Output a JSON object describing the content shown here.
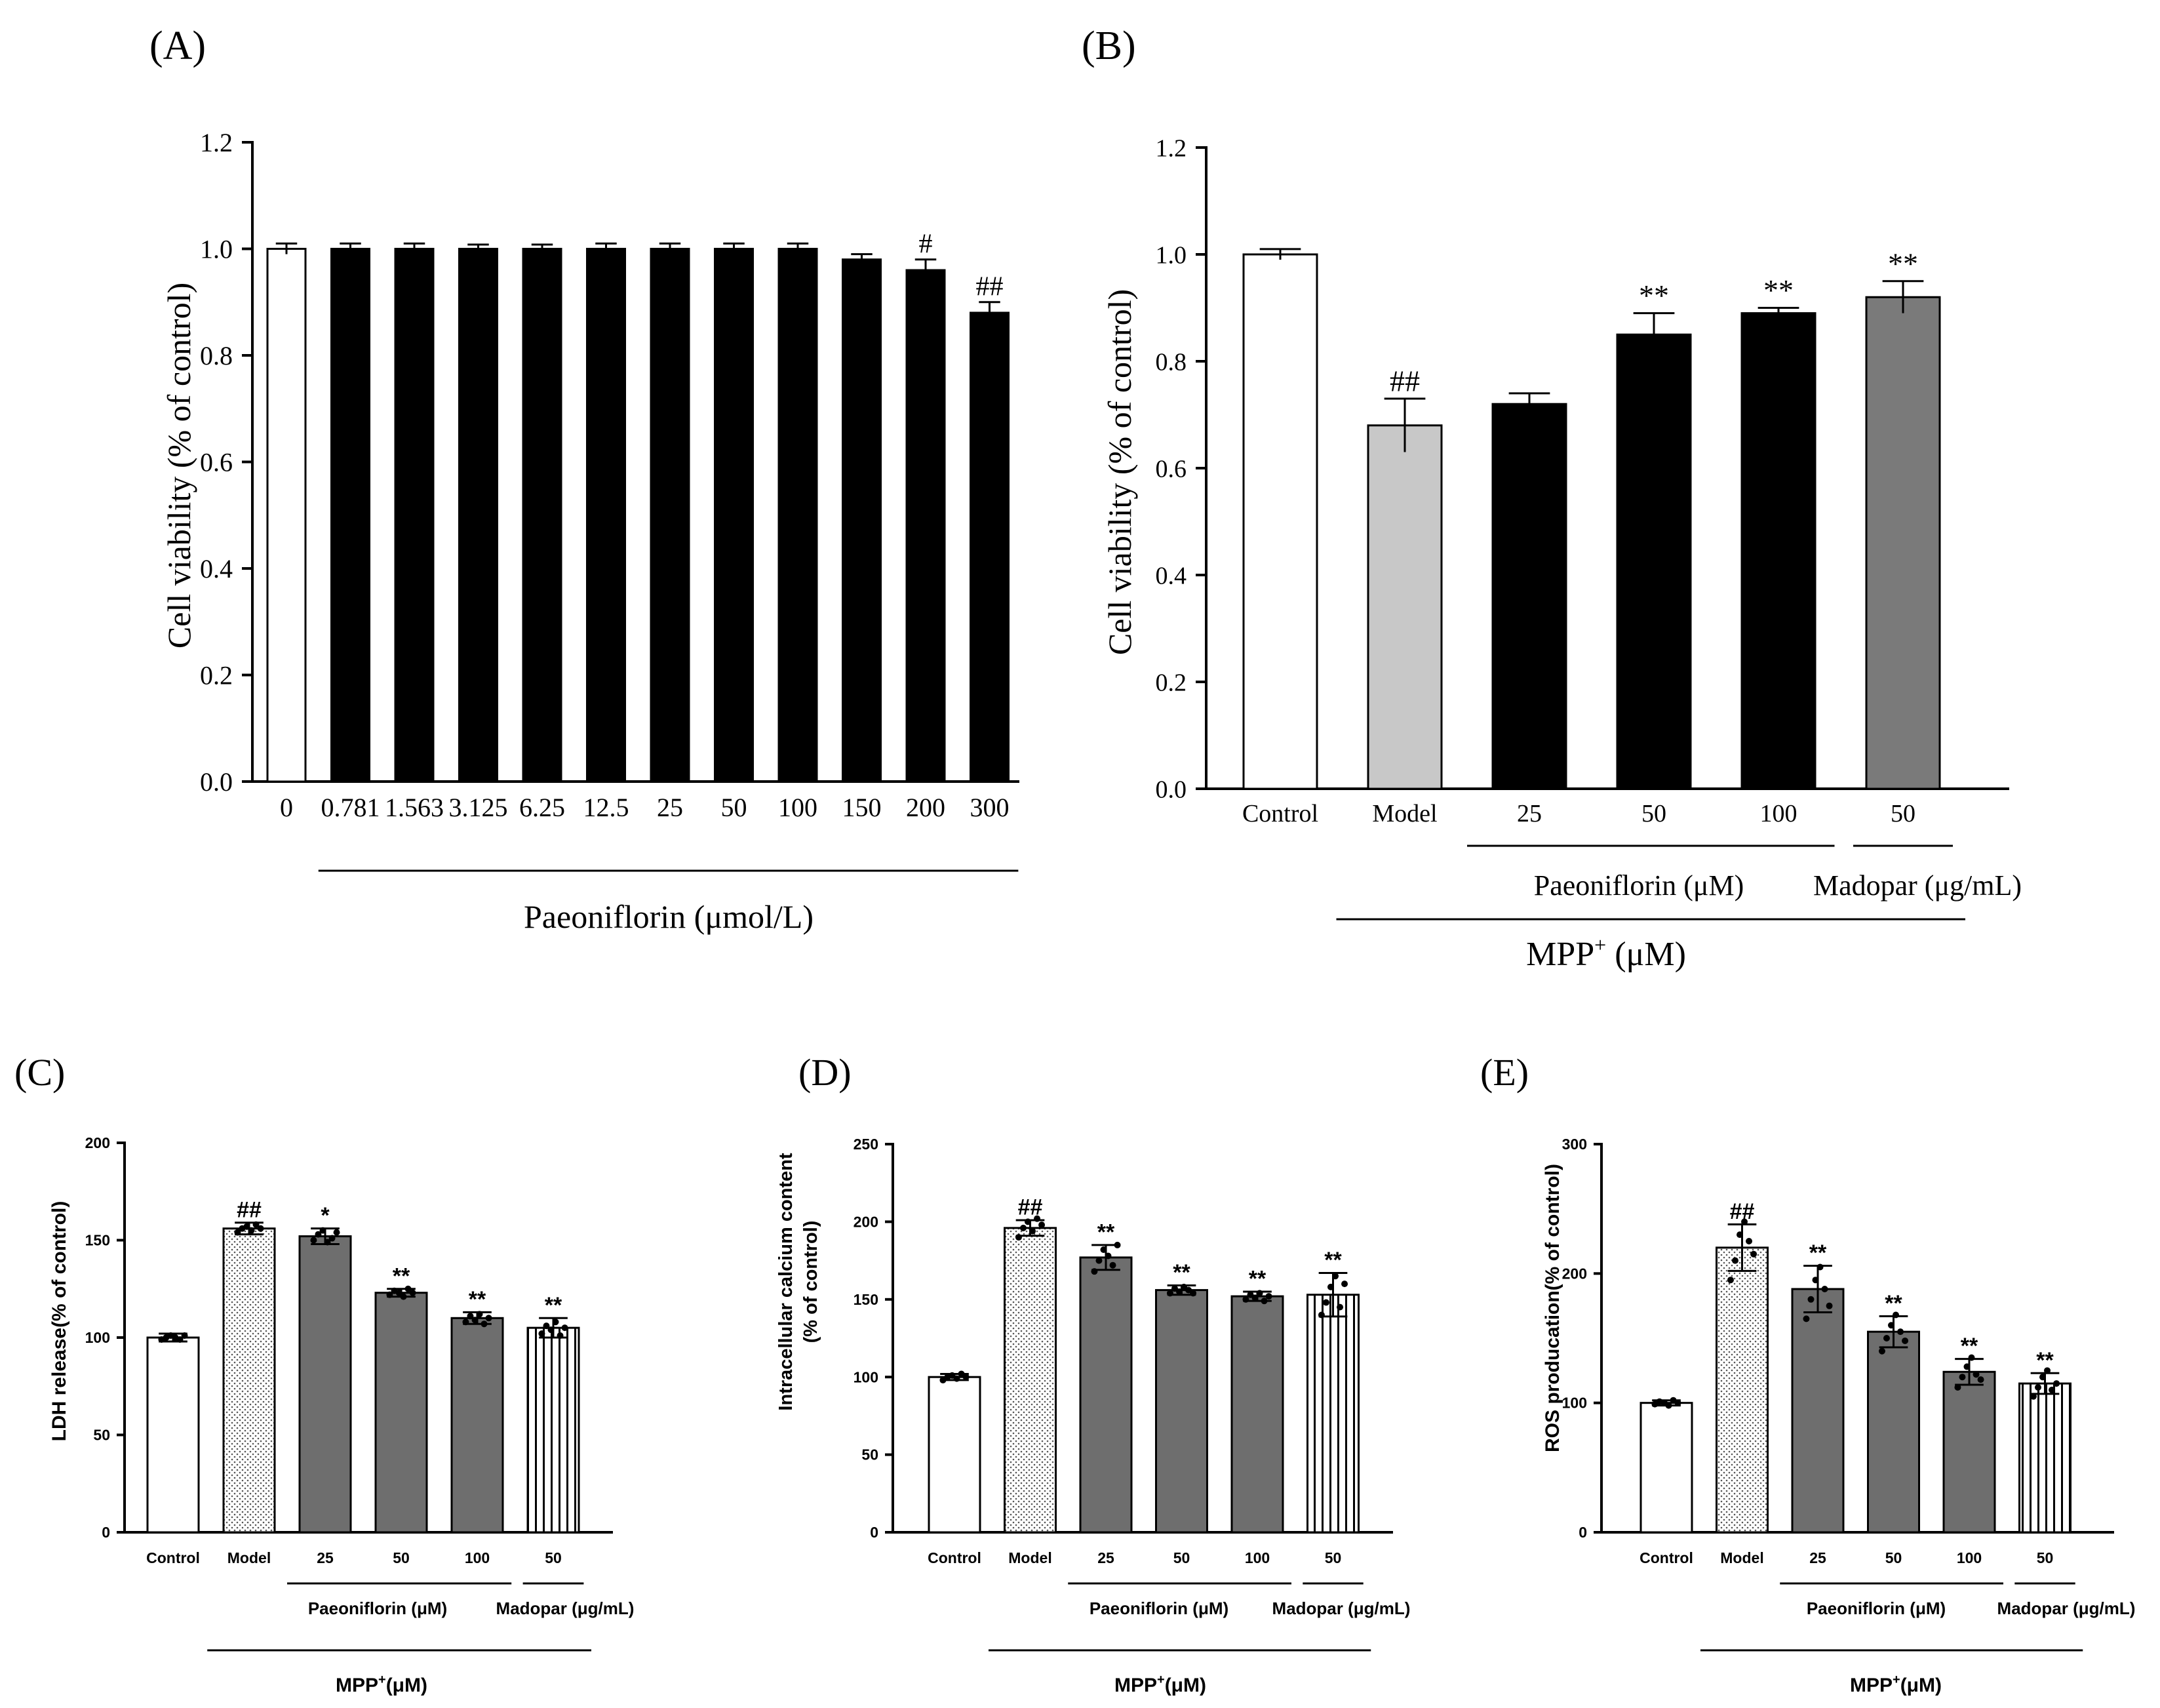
{
  "colors": {
    "black": "#000000",
    "white": "#ffffff",
    "light_gray": "#c8c8c8",
    "mid_gray": "#7a7a7a",
    "dark_gray": "#6e6e6e"
  },
  "chart_data": [
    {
      "id": "A",
      "panel_label": "(A)",
      "type": "bar",
      "title": "",
      "ylabel": "Cell viability (% of control)",
      "xlabel": "",
      "ylim": [
        0,
        1.2
      ],
      "yticks": [
        "0.0",
        "0.2",
        "0.4",
        "0.6",
        "0.8",
        "1.0",
        "1.2"
      ],
      "grid": false,
      "categories": [
        "0",
        "0.781",
        "1.563",
        "3.125",
        "6.25",
        "12.5",
        "25",
        "50",
        "100",
        "150",
        "200",
        "300"
      ],
      "values": [
        1.0,
        1.0,
        1.0,
        1.0,
        1.0,
        1.0,
        1.0,
        1.0,
        1.0,
        0.98,
        0.96,
        0.88
      ],
      "errors": [
        0.01,
        0.01,
        0.01,
        0.008,
        0.008,
        0.01,
        0.01,
        0.01,
        0.01,
        0.01,
        0.02,
        0.02
      ],
      "fills": [
        "white",
        "black",
        "black",
        "black",
        "black",
        "black",
        "black",
        "black",
        "black",
        "black",
        "black",
        "black"
      ],
      "annotations": [
        "",
        "",
        "",
        "",
        "",
        "",
        "",
        "",
        "",
        "",
        "#",
        "##"
      ],
      "groups": [
        {
          "label": "Paeoniflorin (μmol/L)",
          "from": 1,
          "to": 11
        }
      ]
    },
    {
      "id": "B",
      "panel_label": "(B)",
      "type": "bar",
      "title": "",
      "ylabel": "Cell viability (% of control)",
      "xlabel": "",
      "ylim": [
        0,
        1.2
      ],
      "yticks": [
        "0.0",
        "0.2",
        "0.4",
        "0.6",
        "0.8",
        "1.0",
        "1.2"
      ],
      "grid": false,
      "categories": [
        "Control",
        "Model",
        "25",
        "50",
        "100",
        "50"
      ],
      "values": [
        1.0,
        0.68,
        0.72,
        0.85,
        0.89,
        0.92
      ],
      "errors": [
        0.01,
        0.05,
        0.02,
        0.04,
        0.01,
        0.03
      ],
      "fills": [
        "white",
        "lightgray",
        "black",
        "black",
        "black",
        "midgray"
      ],
      "annotations": [
        "",
        "##",
        "",
        "**",
        "**",
        "**"
      ],
      "groups": [
        {
          "label": "Paeoniflorin (μM)",
          "from": 2,
          "to": 4
        },
        {
          "label": "Madopar (μg/mL)",
          "from": 5,
          "to": 5
        }
      ],
      "super_group": {
        "label_main": "MPP",
        "label_sup": "+",
        "label_tail": " (μM)",
        "from": 1,
        "to": 5
      }
    },
    {
      "id": "C",
      "panel_label": "(C)",
      "type": "bar",
      "title": "",
      "ylabel": "LDH release(% of control)",
      "xlabel": "",
      "ylim": [
        0,
        200
      ],
      "yticks": [
        "0",
        "50",
        "100",
        "150",
        "200"
      ],
      "grid": false,
      "categories": [
        "Control",
        "Model",
        "25",
        "50",
        "100",
        "50"
      ],
      "values": [
        100,
        156,
        152,
        123,
        110,
        105
      ],
      "errors": [
        2,
        3,
        4,
        2,
        3,
        5
      ],
      "fills": [
        "white",
        "dots",
        "darkgray",
        "darkgray",
        "darkgray",
        "stripes"
      ],
      "annotations": [
        "",
        "##",
        "*",
        "**",
        "**",
        "**"
      ],
      "points": [
        [
          99,
          100,
          101,
          100,
          99,
          101
        ],
        [
          154,
          156,
          157,
          155,
          158,
          156
        ],
        [
          150,
          153,
          155,
          149,
          151,
          154
        ],
        [
          122,
          124,
          123,
          121,
          125,
          123
        ],
        [
          108,
          111,
          109,
          112,
          107,
          110
        ],
        [
          102,
          106,
          104,
          108,
          101,
          105
        ]
      ],
      "groups": [
        {
          "label": "Paeoniflorin (μM)",
          "from": 2,
          "to": 4
        },
        {
          "label": "Madopar (μg/mL)",
          "from": 5,
          "to": 5
        }
      ],
      "super_group": {
        "label_main": "MPP",
        "label_sup": "+",
        "label_tail": "(μM)",
        "from": 1,
        "to": 5
      }
    },
    {
      "id": "D",
      "panel_label": "(D)",
      "type": "bar",
      "title": "",
      "ylabel": "Intracellular calcium content",
      "ylabel2": "(% of control)",
      "xlabel": "",
      "ylim": [
        0,
        250
      ],
      "yticks": [
        "0",
        "50",
        "100",
        "150",
        "200",
        "250"
      ],
      "grid": false,
      "categories": [
        "Control",
        "Model",
        "25",
        "50",
        "100",
        "50"
      ],
      "values": [
        100,
        196,
        177,
        156,
        152,
        153
      ],
      "errors": [
        2,
        5,
        8,
        3,
        3,
        14
      ],
      "fills": [
        "white",
        "dots",
        "darkgray",
        "darkgray",
        "darkgray",
        "stripes"
      ],
      "annotations": [
        "",
        "##",
        "**",
        "**",
        "**",
        "**"
      ],
      "points": [
        [
          98,
          100,
          101,
          99,
          102,
          100
        ],
        [
          190,
          196,
          200,
          194,
          202,
          198
        ],
        [
          168,
          175,
          182,
          178,
          172,
          185
        ],
        [
          154,
          157,
          155,
          158,
          156,
          154
        ],
        [
          150,
          153,
          151,
          154,
          149,
          152
        ],
        [
          140,
          148,
          158,
          165,
          145,
          160
        ]
      ],
      "groups": [
        {
          "label": "Paeoniflorin (μM)",
          "from": 2,
          "to": 4
        },
        {
          "label": "Madopar (μg/mL)",
          "from": 5,
          "to": 5
        }
      ],
      "super_group": {
        "label_main": "MPP",
        "label_sup": "+",
        "label_tail": "(μM)",
        "from": 1,
        "to": 5
      }
    },
    {
      "id": "E",
      "panel_label": "(E)",
      "type": "bar",
      "title": "",
      "ylabel": "ROS producation(% of control)",
      "xlabel": "",
      "ylim": [
        0,
        300
      ],
      "yticks": [
        "0",
        "100",
        "200",
        "300"
      ],
      "grid": false,
      "categories": [
        "Control",
        "Model",
        "25",
        "50",
        "100",
        "50"
      ],
      "values": [
        100,
        220,
        188,
        155,
        124,
        115
      ],
      "errors": [
        2,
        18,
        18,
        12,
        10,
        8
      ],
      "fills": [
        "white",
        "dots",
        "darkgray",
        "darkgray",
        "darkgray",
        "stripes"
      ],
      "annotations": [
        "",
        "##",
        "**",
        "**",
        "**",
        "**"
      ],
      "points": [
        [
          99,
          101,
          100,
          98,
          102,
          100
        ],
        [
          195,
          210,
          230,
          240,
          225,
          215
        ],
        [
          165,
          180,
          195,
          205,
          188,
          175
        ],
        [
          140,
          150,
          160,
          168,
          155,
          148
        ],
        [
          112,
          120,
          128,
          135,
          122,
          118
        ],
        [
          105,
          112,
          120,
          125,
          110,
          115
        ]
      ],
      "groups": [
        {
          "label": "Paeoniflorin (μM)",
          "from": 2,
          "to": 4
        },
        {
          "label": "Madopar (μg/mL)",
          "from": 5,
          "to": 5
        }
      ],
      "super_group": {
        "label_main": "MPP",
        "label_sup": "+",
        "label_tail": "(μM)",
        "from": 1,
        "to": 5
      }
    }
  ]
}
